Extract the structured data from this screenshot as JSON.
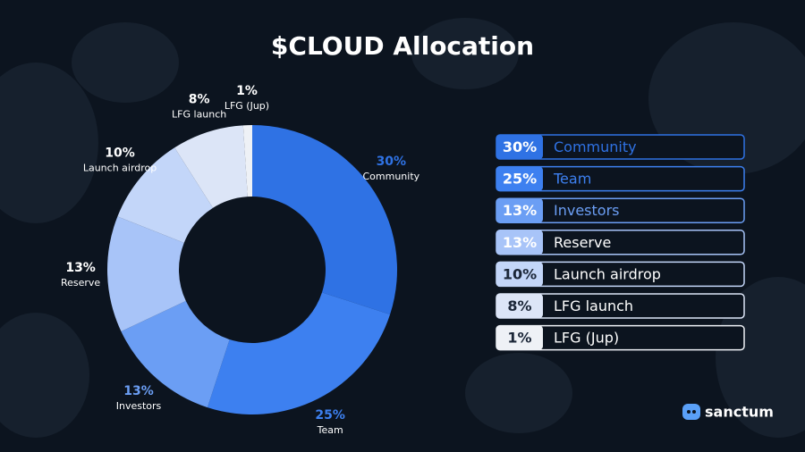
{
  "chart_data": {
    "type": "donut",
    "title": "$CLOUD Allocation",
    "categories": [
      "Community",
      "Team",
      "Investors",
      "Reserve",
      "Launch airdrop",
      "LFG launch",
      "LFG (Jup)"
    ],
    "values": [
      30,
      25,
      13,
      13,
      10,
      8,
      1
    ],
    "value_labels": [
      "30%",
      "25%",
      "13%",
      "13%",
      "10%",
      "8%",
      "1%"
    ],
    "colors": [
      "#2f72e4",
      "#3d80f0",
      "#6b9ef4",
      "#a8c4f8",
      "#c3d6f9",
      "#dce5f7",
      "#eef1f6"
    ],
    "legend": "right"
  },
  "brand": "sanctum"
}
